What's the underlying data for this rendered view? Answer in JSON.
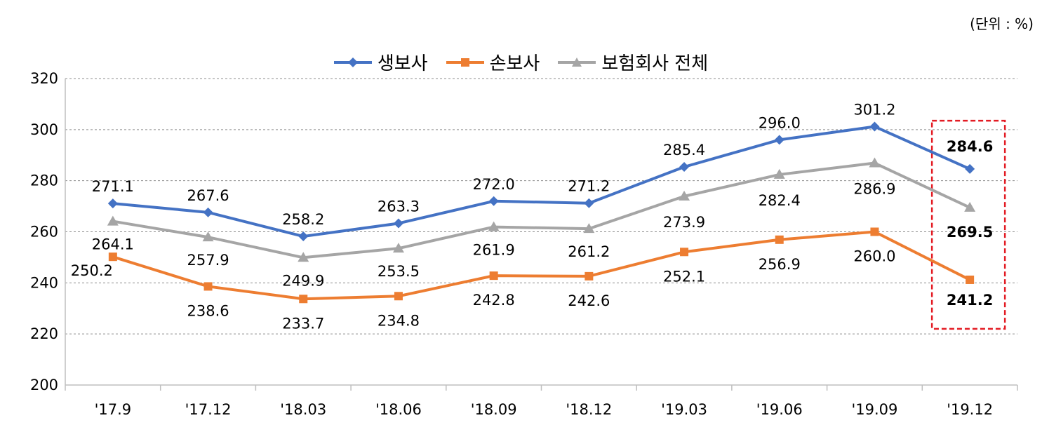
{
  "unit_label": "(단위 : %)",
  "chart_data": {
    "type": "line",
    "categories": [
      "'17.9",
      "'17.12",
      "'18.03",
      "'18.06",
      "'18.09",
      "'18.12",
      "'19.03",
      "'19.06",
      "'19.09",
      "'19.12"
    ],
    "ylim": [
      200,
      320
    ],
    "yticks": [
      200,
      220,
      240,
      260,
      280,
      300,
      320
    ],
    "grid": true,
    "legend_position": "top-center",
    "highlight_category": "'19.12",
    "series": [
      {
        "name": "생보사",
        "color": "#4472C4",
        "marker": "diamond",
        "values": [
          271.1,
          267.6,
          258.2,
          263.3,
          272.0,
          271.2,
          285.4,
          296.0,
          301.2,
          284.6
        ]
      },
      {
        "name": "손보사",
        "color": "#ED7D31",
        "marker": "square",
        "values": [
          250.2,
          238.6,
          233.7,
          234.8,
          242.8,
          242.6,
          252.1,
          256.9,
          260.0,
          241.2
        ]
      },
      {
        "name": "보험회사 전체",
        "color": "#A5A5A5",
        "marker": "triangle",
        "values": [
          264.1,
          257.9,
          249.9,
          253.5,
          261.9,
          261.2,
          273.9,
          282.4,
          286.9,
          269.5
        ]
      }
    ]
  }
}
